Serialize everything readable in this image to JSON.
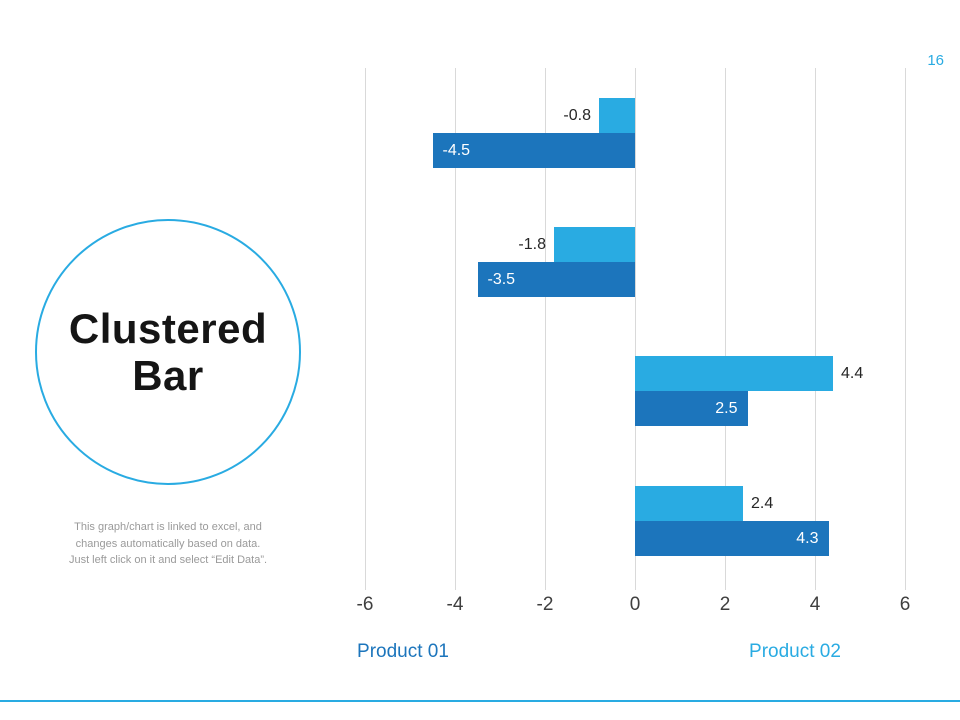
{
  "page_number": "16",
  "title": {
    "line1": "Clustered",
    "line2": "Bar"
  },
  "note": {
    "lines": [
      "This graph/chart is linked to excel, and",
      "changes automatically based on data.",
      "Just left click on it and select “Edit Data”."
    ]
  },
  "colors": {
    "accent": "#29ABE2",
    "product01": "#1C75BC",
    "product02": "#29ABE2",
    "gridline": "#D9D9D9"
  },
  "chart_data": {
    "type": "bar",
    "orientation": "horizontal",
    "categories": [
      "",
      "",
      "",
      ""
    ],
    "series": [
      {
        "name": "Product 01",
        "color": "#1C75BC",
        "values": [
          -4.5,
          -3.5,
          2.5,
          4.3
        ],
        "label_position": "inside-end",
        "label_color": "#FFFFFF"
      },
      {
        "name": "Product 02",
        "color": "#29ABE2",
        "values": [
          -0.8,
          -1.8,
          4.4,
          2.4
        ],
        "label_position": "outside-end",
        "label_color": "#262626"
      }
    ],
    "x_ticks": [
      -6,
      -4,
      -2,
      0,
      2,
      4,
      6
    ],
    "xlim": [
      -6,
      6
    ],
    "grid": true,
    "legend": [
      {
        "label": "Product 01",
        "color": "#1C75BC"
      },
      {
        "label": "Product 02",
        "color": "#29ABE2"
      }
    ],
    "legend_position": "bottom"
  }
}
